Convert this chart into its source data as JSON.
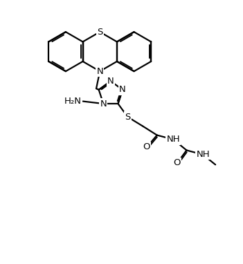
{
  "bg_color": "#ffffff",
  "line_color": "#000000",
  "bond_lw": 1.6,
  "label_fontsize": 9.5,
  "figsize": [
    3.51,
    3.82
  ],
  "dpi": 100,
  "xlim": [
    0.0,
    10.0
  ],
  "ylim": [
    0.5,
    11.5
  ]
}
